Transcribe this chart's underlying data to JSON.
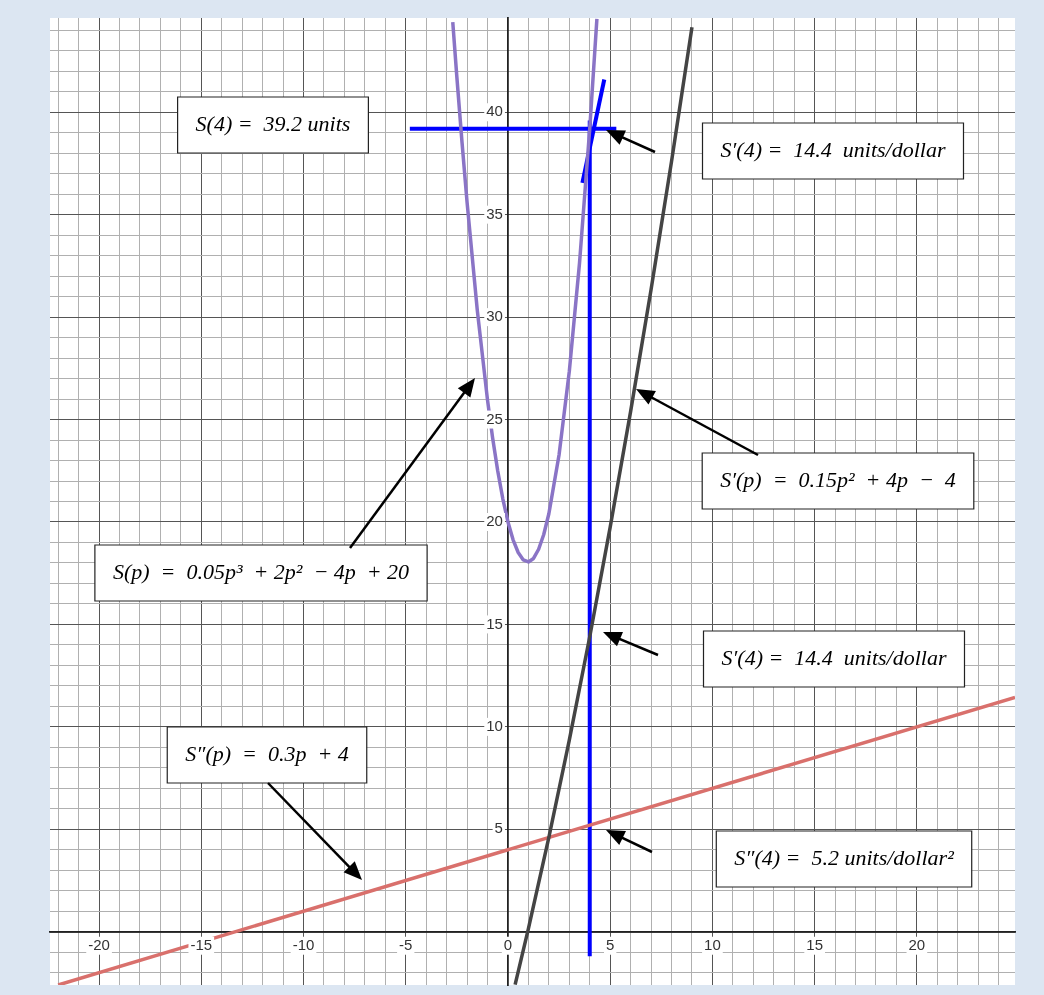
{
  "chart_data": {
    "type": "line",
    "xlim": [
      -22.4,
      24.8
    ],
    "ylim": [
      -2.6,
      44.6
    ],
    "grid": true,
    "legend": false,
    "xticks": [
      {
        "value": -22,
        "label": null
      },
      {
        "value": -21,
        "label": null
      },
      -20,
      {
        "value": -19,
        "label": null
      },
      {
        "value": -18,
        "label": null
      },
      {
        "value": -17,
        "label": null
      },
      {
        "value": -16,
        "label": null
      },
      -15,
      {
        "value": -14,
        "label": null
      },
      {
        "value": -13,
        "label": null
      },
      {
        "value": -12,
        "label": null
      },
      {
        "value": -11,
        "label": null
      },
      -10,
      {
        "value": -9,
        "label": null
      },
      {
        "value": -8,
        "label": null
      },
      {
        "value": -7,
        "label": null
      },
      {
        "value": -6,
        "label": null
      },
      -5,
      {
        "value": -4,
        "label": null
      },
      {
        "value": -3,
        "label": null
      },
      {
        "value": -2,
        "label": null
      },
      {
        "value": -1,
        "label": null
      },
      0,
      {
        "value": 1,
        "label": null
      },
      {
        "value": 2,
        "label": null
      },
      {
        "value": 3,
        "label": null
      },
      {
        "value": 4,
        "label": null
      },
      5,
      {
        "value": 6,
        "label": null
      },
      {
        "value": 7,
        "label": null
      },
      {
        "value": 8,
        "label": null
      },
      {
        "value": 9,
        "label": null
      },
      10,
      {
        "value": 11,
        "label": null
      },
      {
        "value": 12,
        "label": null
      },
      {
        "value": 13,
        "label": null
      },
      {
        "value": 14,
        "label": null
      },
      15,
      {
        "value": 16,
        "label": null
      },
      {
        "value": 17,
        "label": null
      },
      {
        "value": 18,
        "label": null
      },
      {
        "value": 19,
        "label": null
      },
      20,
      {
        "value": 21,
        "label": null
      },
      {
        "value": 22,
        "label": null
      },
      {
        "value": 23,
        "label": null
      },
      {
        "value": 24,
        "label": null
      }
    ],
    "yticks": [
      {
        "value": -2,
        "label": null
      },
      {
        "value": -1,
        "label": null
      },
      {
        "value": 0,
        "label": null
      },
      {
        "value": 1,
        "label": null
      },
      {
        "value": 2,
        "label": null
      },
      {
        "value": 3,
        "label": null
      },
      {
        "value": 4,
        "label": null
      },
      5,
      {
        "value": 6,
        "label": null
      },
      {
        "value": 7,
        "label": null
      },
      {
        "value": 8,
        "label": null
      },
      {
        "value": 9,
        "label": null
      },
      10,
      {
        "value": 11,
        "label": null
      },
      {
        "value": 12,
        "label": null
      },
      {
        "value": 13,
        "label": null
      },
      {
        "value": 14,
        "label": null
      },
      15,
      {
        "value": 16,
        "label": null
      },
      {
        "value": 17,
        "label": null
      },
      {
        "value": 18,
        "label": null
      },
      {
        "value": 19,
        "label": null
      },
      20,
      {
        "value": 21,
        "label": null
      },
      {
        "value": 22,
        "label": null
      },
      {
        "value": 23,
        "label": null
      },
      {
        "value": 24,
        "label": null
      },
      25,
      {
        "value": 26,
        "label": null
      },
      {
        "value": 27,
        "label": null
      },
      {
        "value": 28,
        "label": null
      },
      {
        "value": 29,
        "label": null
      },
      30,
      {
        "value": 31,
        "label": null
      },
      {
        "value": 32,
        "label": null
      },
      {
        "value": 33,
        "label": null
      },
      {
        "value": 34,
        "label": null
      },
      35,
      {
        "value": 36,
        "label": null
      },
      {
        "value": 37,
        "label": null
      },
      {
        "value": 38,
        "label": null
      },
      {
        "value": 39,
        "label": null
      },
      40,
      {
        "value": 41,
        "label": null
      },
      {
        "value": 42,
        "label": null
      },
      {
        "value": 43,
        "label": null
      },
      {
        "value": 44,
        "label": null
      }
    ],
    "series": [
      {
        "color": "#8a74c6",
        "x": [
          -2.7,
          -2.5,
          -2.25,
          -2,
          -1.5,
          -1,
          -0.75,
          -0.5,
          -0.25,
          0,
          0.25,
          0.5,
          0.75,
          1,
          1.25,
          1.5,
          1.75,
          2,
          2.5,
          3,
          3.5,
          4,
          4.35
        ],
        "values": [
          44.4,
          41.72,
          38.56,
          35.6,
          30.33,
          25.95,
          24.1,
          22.49,
          21.12,
          20,
          19.13,
          18.51,
          18.15,
          18.05,
          18.22,
          18.67,
          19.39,
          20.4,
          23.28,
          27.35,
          32.64,
          39.2,
          44.56
        ]
      },
      {
        "color": "#444444",
        "x": [
          0.35,
          1,
          2,
          3,
          4,
          5,
          6,
          7,
          8,
          9
        ],
        "values": [
          -2.58,
          0.15,
          4.6,
          9.35,
          14.4,
          19.75,
          25.4,
          31.35,
          37.6,
          44.15
        ]
      },
      {
        "color": "#d9706c",
        "x": [
          -22,
          24.8
        ],
        "values": [
          -2.6,
          11.44
        ]
      },
      {
        "color": "#0000ff",
        "x": [
          4,
          4
        ],
        "values": [
          -1.2,
          39.6
        ]
      },
      {
        "color": "#0000ff",
        "x": [
          -4.8,
          5.3
        ],
        "values": [
          39.2,
          39.2
        ]
      },
      {
        "color": "#0000ff",
        "x": [
          3.64,
          4.71
        ],
        "values": [
          36.55,
          41.6
        ]
      }
    ],
    "annotations": [
      "S(4) =  39.2 units",
      "S′(4) =  14.4  units/dollar",
      "S′(p)  =  0.15p²  + 4p  −  4",
      "S(p)  =  0.05p³  + 2p²  − 4p  + 20",
      "S′(4) =  14.4  units/dollar",
      "S″(p)  =  0.3p  + 4",
      "S″(4) =  5.2 units/dollar²"
    ]
  }
}
